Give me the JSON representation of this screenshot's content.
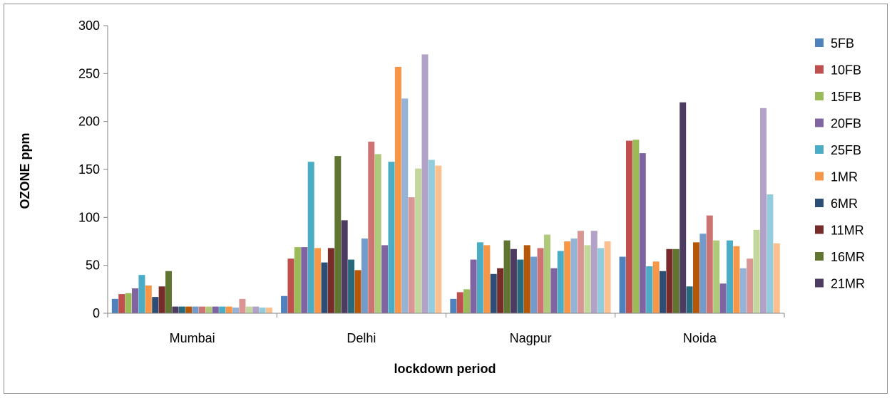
{
  "chart_data": {
    "type": "bar",
    "title": "",
    "xlabel": "lockdown period",
    "ylabel": "OZONE ppm",
    "ylim": [
      0,
      300
    ],
    "yticks": [
      0,
      50,
      100,
      150,
      200,
      250,
      300
    ],
    "grid": false,
    "legend_position": "right",
    "legend_visible_count": 10,
    "categories": [
      "Mumbai",
      "Delhi",
      "Nagpur",
      "Noida"
    ],
    "series": [
      {
        "name": "5FB",
        "color": "#4F81BD",
        "values": [
          15,
          18,
          15,
          59
        ]
      },
      {
        "name": "10FB",
        "color": "#C0504D",
        "values": [
          20,
          57,
          22,
          180
        ]
      },
      {
        "name": "15FB",
        "color": "#9BBB59",
        "values": [
          21,
          69,
          25,
          181
        ]
      },
      {
        "name": "20FB",
        "color": "#8064A2",
        "values": [
          26,
          69,
          56,
          167
        ]
      },
      {
        "name": "25FB",
        "color": "#4BACC6",
        "values": [
          40,
          158,
          74,
          49
        ]
      },
      {
        "name": "1MR",
        "color": "#F79646",
        "values": [
          29,
          68,
          71,
          54
        ]
      },
      {
        "name": "6MR",
        "color": "#2C4D75",
        "values": [
          17,
          53,
          41,
          44
        ]
      },
      {
        "name": "11MR",
        "color": "#772C2A",
        "values": [
          28,
          68,
          47,
          67
        ]
      },
      {
        "name": "16MR",
        "color": "#5F7530",
        "values": [
          44,
          164,
          76,
          67
        ]
      },
      {
        "name": "21MR",
        "color": "#4D3B62",
        "values": [
          7,
          97,
          67,
          220
        ]
      },
      {
        "name": "",
        "color": "#276A7C",
        "values": [
          7,
          56,
          56,
          28
        ]
      },
      {
        "name": "",
        "color": "#B65708",
        "values": [
          7,
          45,
          71,
          74
        ]
      },
      {
        "name": "",
        "color": "#729ACA",
        "values": [
          7,
          78,
          59,
          83
        ]
      },
      {
        "name": "",
        "color": "#CD7371",
        "values": [
          7,
          179,
          68,
          102
        ]
      },
      {
        "name": "",
        "color": "#AFC97A",
        "values": [
          7,
          166,
          82,
          76
        ]
      },
      {
        "name": "",
        "color": "#8064A2",
        "values": [
          7,
          71,
          47,
          31
        ]
      },
      {
        "name": "",
        "color": "#4BACC6",
        "values": [
          7,
          158,
          65,
          76
        ]
      },
      {
        "name": "",
        "color": "#F79646",
        "values": [
          7,
          257,
          75,
          70
        ]
      },
      {
        "name": "",
        "color": "#95B3D7",
        "values": [
          6,
          224,
          78,
          47
        ]
      },
      {
        "name": "",
        "color": "#D99694",
        "values": [
          15,
          121,
          86,
          57
        ]
      },
      {
        "name": "",
        "color": "#C3D69B",
        "values": [
          7,
          151,
          71,
          87
        ]
      },
      {
        "name": "",
        "color": "#B2A2C7",
        "values": [
          7,
          270,
          86,
          214
        ]
      },
      {
        "name": "",
        "color": "#93CDDD",
        "values": [
          6,
          160,
          68,
          124
        ]
      },
      {
        "name": "",
        "color": "#FAC090",
        "values": [
          6,
          154,
          75,
          73
        ]
      }
    ]
  }
}
